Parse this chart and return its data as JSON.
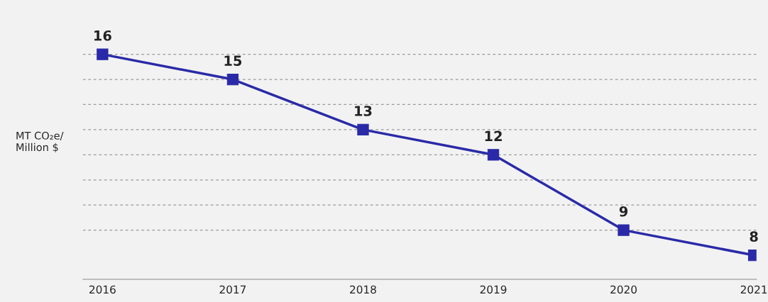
{
  "chart_data": {
    "type": "line",
    "ylabel": "MT CO₂e/\nMillion $",
    "categories": [
      "2016",
      "2017",
      "2018",
      "2019",
      "2020",
      "2021"
    ],
    "series": [
      {
        "color": "#2a2aa8",
        "values": [
          16,
          15,
          13,
          12,
          9,
          8
        ]
      }
    ],
    "data_labels": true,
    "marker": "square",
    "line_style": "solid",
    "grid": "y",
    "yticks": [
      {
        "value": 9,
        "label": null
      },
      {
        "value": 10,
        "label": null
      },
      {
        "value": 11,
        "label": null
      },
      {
        "value": 12,
        "label": null
      },
      {
        "value": 13,
        "label": null
      },
      {
        "value": 14,
        "label": null
      },
      {
        "value": 15,
        "label": null
      },
      {
        "value": 16,
        "label": null
      }
    ],
    "tick_labels": "x",
    "legend": false
  }
}
